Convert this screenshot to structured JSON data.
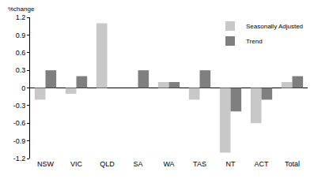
{
  "chart_data": {
    "type": "bar",
    "y_label": "%change",
    "categories": [
      "NSW",
      "VIC",
      "QLD",
      "SA",
      "WA",
      "TAS",
      "NT",
      "ACT",
      "Total"
    ],
    "series": [
      {
        "name": "Seasonally Adjusted",
        "color": "#c8c8c8",
        "values": [
          -0.2,
          -0.1,
          1.1,
          0.0,
          0.1,
          -0.2,
          -1.1,
          -0.6,
          0.1
        ]
      },
      {
        "name": "Trend",
        "color": "#7f7f7f",
        "values": [
          0.3,
          0.2,
          0.0,
          0.3,
          0.1,
          0.3,
          -0.4,
          -0.2,
          0.2
        ]
      }
    ],
    "ylim": [
      -1.2,
      1.2
    ],
    "yticks": [
      -1.2,
      -0.9,
      -0.6,
      -0.3,
      0,
      0.3,
      0.6,
      0.9,
      1.2
    ],
    "grid": false,
    "legend": "upper right"
  }
}
